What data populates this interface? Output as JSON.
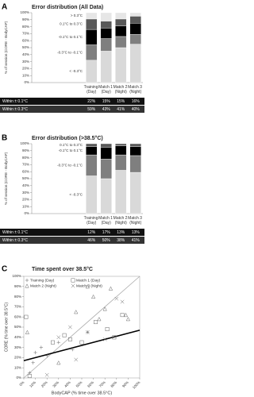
{
  "chart_data": [
    {
      "type": "stacked_bar",
      "label": "A",
      "title": "Error distribution (All Data)",
      "ylabel": "% of session (CORE - BodyCAP)",
      "categories": [
        "Training (Day)",
        "Match 1 (Day)",
        "Match 2 (Night)",
        "Match 3 (Night)"
      ],
      "series": [
        {
          "name": "< -0.3°C",
          "color": "#d9d9d9",
          "values": [
            32,
            45,
            50,
            55
          ]
        },
        {
          "name": "-0.3°C to -0.1°C",
          "color": "#7f7f7f",
          "values": [
            22,
            18,
            16,
            14
          ]
        },
        {
          "name": "-0.1°C to 0.1°C",
          "color": "#000000",
          "values": [
            22,
            15,
            15,
            16
          ]
        },
        {
          "name": "0.1°C to 0.3°C",
          "color": "#595959",
          "values": [
            15,
            10,
            10,
            10
          ]
        },
        {
          "name": "> 0.3°C",
          "color": "#e6e6e6",
          "values": [
            9,
            12,
            9,
            5
          ]
        }
      ],
      "ylim": [
        0,
        100
      ],
      "yticks": [
        {
          "value": 0,
          "label": "0%"
        },
        {
          "value": 10,
          "label": "10%"
        },
        {
          "value": 20,
          "label": "20%"
        },
        {
          "value": 30,
          "label": "30%"
        },
        {
          "value": 40,
          "label": "40%"
        },
        {
          "value": 50,
          "label": "50%"
        },
        {
          "value": 60,
          "label": "60%"
        },
        {
          "value": 70,
          "label": "70%"
        },
        {
          "value": 80,
          "label": "80%"
        },
        {
          "value": 90,
          "label": "90%"
        },
        {
          "value": 100,
          "label": "100%"
        }
      ],
      "table": [
        {
          "label": "Within ± 0.1°C",
          "values": [
            22,
            15,
            15,
            16
          ],
          "value_labels": [
            "22%",
            "15%",
            "15%",
            "16%"
          ]
        },
        {
          "label": "Within ± 0.3°C",
          "values": [
            59,
            43,
            41,
            40
          ],
          "value_labels": [
            "59%",
            "43%",
            "41%",
            "40%"
          ]
        }
      ]
    },
    {
      "type": "stacked_bar",
      "label": "B",
      "title": "Error distribution (>38.5°C)",
      "ylabel": "% of session (CORE - BodyCAP)",
      "categories": [
        "Training (Day)",
        "Match 1 (Day)",
        "Match 2 (Night)",
        "Match 3 (Night)"
      ],
      "series": [
        {
          "name": "< -0.3°C",
          "color": "#d9d9d9",
          "values": [
            54,
            50,
            62,
            59
          ]
        },
        {
          "name": "-0.3°C to -0.1°C",
          "color": "#7f7f7f",
          "values": [
            30,
            28,
            22,
            24
          ]
        },
        {
          "name": "-0.1°C to 0.1°C",
          "color": "#000000",
          "values": [
            12,
            17,
            13,
            13
          ]
        },
        {
          "name": "0.1°C to 0.3°C",
          "color": "#595959",
          "values": [
            4,
            5,
            3,
            4
          ]
        }
      ],
      "ylim": [
        0,
        100
      ],
      "yticks": [
        {
          "value": 0,
          "label": "0%"
        },
        {
          "value": 10,
          "label": "10%"
        },
        {
          "value": 20,
          "label": "20%"
        },
        {
          "value": 30,
          "label": "30%"
        },
        {
          "value": 40,
          "label": "40%"
        },
        {
          "value": 50,
          "label": "50%"
        },
        {
          "value": 60,
          "label": "60%"
        },
        {
          "value": 70,
          "label": "70%"
        },
        {
          "value": 80,
          "label": "80%"
        },
        {
          "value": 90,
          "label": "90%"
        },
        {
          "value": 100,
          "label": "100%"
        }
      ],
      "table": [
        {
          "label": "Within ± 0.1°C",
          "values": [
            12,
            17,
            13,
            13
          ],
          "value_labels": [
            "12%",
            "17%",
            "13%",
            "13%"
          ]
        },
        {
          "label": "Within ± 0.3°C",
          "values": [
            46,
            50,
            38,
            41
          ],
          "value_labels": [
            "46%",
            "50%",
            "38%",
            "41%"
          ]
        }
      ]
    },
    {
      "type": "scatter",
      "label": "C",
      "title": "Time spent over 38.5°C",
      "xlabel": "BodyCAP (% time over 38.5°C)",
      "ylabel": "CORE (% time over 38.5°C)",
      "xlim": [
        0,
        100
      ],
      "ylim": [
        0,
        100
      ],
      "xticks": [
        {
          "value": 0,
          "label": "0%"
        },
        {
          "value": 10,
          "label": "10%"
        },
        {
          "value": 20,
          "label": "20%"
        },
        {
          "value": 30,
          "label": "30%"
        },
        {
          "value": 40,
          "label": "40%"
        },
        {
          "value": 50,
          "label": "50%"
        },
        {
          "value": 60,
          "label": "60%"
        },
        {
          "value": 70,
          "label": "70%"
        },
        {
          "value": 80,
          "label": "80%"
        },
        {
          "value": 90,
          "label": "90%"
        },
        {
          "value": 100,
          "label": "100%"
        }
      ],
      "yticks": [
        {
          "value": 0,
          "label": "0%"
        },
        {
          "value": 10,
          "label": "10%"
        },
        {
          "value": 20,
          "label": "20%"
        },
        {
          "value": 30,
          "label": "30%"
        },
        {
          "value": 40,
          "label": "40%"
        },
        {
          "value": 50,
          "label": "50%"
        },
        {
          "value": 60,
          "label": "60%"
        },
        {
          "value": 70,
          "label": "70%"
        },
        {
          "value": 80,
          "label": "80%"
        },
        {
          "value": 90,
          "label": "90%"
        },
        {
          "value": 100,
          "label": "100%"
        }
      ],
      "series": [
        {
          "name": "Training (Day)",
          "marker": "plus",
          "color": "#666666",
          "x": [
            5,
            8,
            10,
            15,
            20,
            30,
            42,
            55
          ],
          "values": [
            5,
            15,
            25,
            30,
            22,
            35,
            28,
            45
          ]
        },
        {
          "name": "Match 1 (Day)",
          "marker": "square",
          "color": "#666666",
          "x": [
            2,
            5,
            25,
            35,
            40,
            50,
            62,
            72,
            78,
            85
          ],
          "values": [
            60,
            2,
            35,
            42,
            38,
            35,
            55,
            48,
            40,
            62
          ]
        },
        {
          "name": "Match 2 (Night)",
          "marker": "triangle",
          "color": "#666666",
          "x": [
            3,
            30,
            45,
            55,
            60,
            65,
            70,
            75,
            88,
            90
          ],
          "values": [
            45,
            15,
            65,
            90,
            80,
            58,
            68,
            88,
            62,
            58
          ]
        },
        {
          "name": "Match 3 (Night)",
          "marker": "cross",
          "color": "#666666",
          "x": [
            20,
            30,
            40,
            45,
            55,
            70,
            80,
            85
          ],
          "values": [
            3,
            40,
            50,
            18,
            45,
            38,
            78,
            75
          ]
        }
      ],
      "lines": [
        {
          "x": [
            0,
            100
          ],
          "y": [
            0,
            100
          ],
          "color": "#aaaaaa",
          "width": 0.8
        },
        {
          "x": [
            0,
            100
          ],
          "y": [
            17,
            47
          ],
          "color": "#000000",
          "width": 1.6
        }
      ]
    }
  ]
}
